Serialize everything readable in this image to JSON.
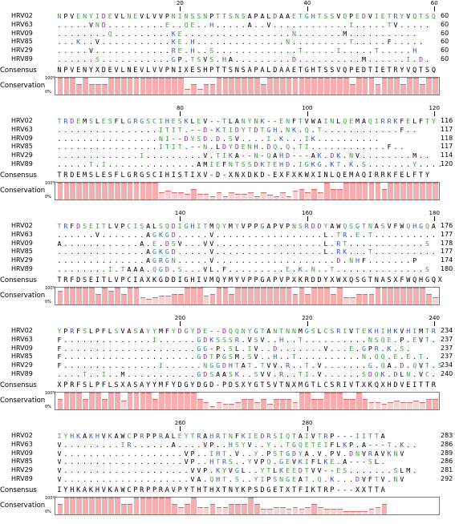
{
  "labels": {
    "consensus": "Consensus",
    "conservation": "Conservation",
    "pct_high": "100%",
    "pct_low": "0%"
  },
  "blocks": [
    {
      "ruler": [
        {
          "label": "20",
          "col": 20
        },
        {
          "label": "40",
          "col": 40
        },
        {
          "label": "60",
          "col": 60
        }
      ],
      "rows": [
        {
          "name": "HRV02",
          "seq": "NPVENYIDEVLNEVLVVPNINSSNPTTSNSAPALDAAETGHTSSVQPEDVIETRYVQTSQ",
          "count": "60"
        },
        {
          "name": "HRV63",
          "seq": ".....VND.........E..QE..H.....A..V............I.....TV.....",
          "count": "60"
        },
        {
          "name": "HRV09",
          "seq": "........Q.........KE.................N.......M...........",
          "count": "60"
        },
        {
          "name": "HRV85",
          "seq": "...K..V...........KE.H..............N.........T.....F.....",
          "count": "60"
        },
        {
          "name": "HRV29",
          "seq": ".....V............RE.H..S.............T.....I.....T.....H",
          "count": "60"
        },
        {
          "name": "HRV89",
          "seq": "......S...........GP.TSVS.HA.........D..........M......I.D.",
          "count": "60"
        }
      ],
      "consensus": "NPVENYXDEVLNEVLVVPNIXESHPTTSNSAPALDAAETGHTSSVQPEDTIETRYVQTSQ",
      "conservation": [
        100,
        100,
        100,
        62,
        100,
        62,
        62,
        62,
        100,
        100,
        100,
        100,
        100,
        100,
        100,
        100,
        100,
        100,
        100,
        100,
        33,
        62,
        33,
        62,
        62,
        100,
        100,
        100,
        100,
        100,
        100,
        100,
        62,
        100,
        100,
        100,
        100,
        100,
        100,
        100,
        100,
        100,
        100,
        100,
        100,
        100,
        62,
        100,
        100,
        100,
        62,
        100,
        100,
        100,
        62,
        100,
        100,
        62,
        100,
        100
      ]
    },
    {
      "ruler": [
        {
          "label": "80",
          "col": 20
        },
        {
          "label": "100",
          "col": 40
        },
        {
          "label": "120",
          "col": 60
        }
      ],
      "rows": [
        {
          "name": "HRV02",
          "seq": "TRDEMSLESFLGRGSCIHESKLEV--TLANYNK--ENFTVWAINLQEMAQIRRKFELFTY",
          "count": "116"
        },
        {
          "name": "HRV63",
          "seq": "................ITIT.--D-KTIDYTDTGH.NK.Q.T............F..",
          "count": "117"
        },
        {
          "name": "HRV09",
          "seq": "................NI--DYSD.D.SV....I.K...IK..........",
          "count": "118"
        },
        {
          "name": "HRV85",
          "seq": "................ITIT.--N.LDYDENH.DQ.Q.TI............F..",
          "count": "117"
        },
        {
          "name": "HRV29",
          "seq": ".............I.........V.TIKA--N-QAHD---AK.DK.NV........M..",
          "count": "114"
        },
        {
          "name": "HRV89",
          "seq": ".....T.I..............AMIEFNTSSDKTEHD.IGKG.KT.K.S.......Y....",
          "count": "120"
        }
      ],
      "consensus": "TRDEMSLESFLGRGSCIHISTIXV-D-XNXDKD-EXFXKWXINLQEMAQIRRKFELFTY",
      "conservation": [
        100,
        100,
        100,
        100,
        100,
        100,
        100,
        100,
        100,
        100,
        100,
        100,
        100,
        100,
        100,
        100,
        40,
        50,
        40,
        40,
        33,
        62,
        33,
        33,
        20,
        40,
        20,
        40,
        33,
        33,
        40,
        20,
        40,
        30,
        20,
        40,
        20,
        50,
        62,
        40,
        62,
        40,
        100,
        62,
        62,
        100,
        100,
        100,
        100,
        100,
        100,
        62,
        100,
        100,
        100,
        100,
        100,
        100,
        100,
        100
      ]
    },
    {
      "ruler": [
        {
          "label": "140",
          "col": 20
        },
        {
          "label": "160",
          "col": 40
        },
        {
          "label": "180",
          "col": 60
        }
      ],
      "rows": [
        {
          "name": "HRV02",
          "seq": "TRFDSEITLVPCISALSQDIGHITMQYMYVPPGAPVPNSRDDYAWQSGTNASVFWQHGQA",
          "count": "176"
        },
        {
          "name": "HRV63",
          "seq": "......V.......AGKGD.....V.................L.TR.E.T..........",
          "count": "177"
        },
        {
          "name": "HRV09",
          "seq": "A............A.E.DSV...VV.................L.RT............S",
          "count": "178"
        },
        {
          "name": "HRV85",
          "seq": "..............AGKGD.....V.................L.RK...T..........",
          "count": "177"
        },
        {
          "name": "HRV29",
          "seq": "..............AGRGN.....V...................D.NHF.......P",
          "count": "174"
        },
        {
          "name": "HRV89",
          "seq": "........I.TAAA.QGD.S...VL.F.........E.K.N..T..............S",
          "count": "180"
        }
      ],
      "consensus": "TRFDSEITLVPCIAXKGDDIGHIVMQYMYVPPGAPVPXKRDDYXWXQSGTNASXFWQHGQX",
      "conservation": [
        80,
        100,
        100,
        100,
        100,
        100,
        62,
        100,
        80,
        100,
        62,
        100,
        100,
        40,
        33,
        40,
        50,
        50,
        62,
        62,
        100,
        100,
        100,
        50,
        62,
        100,
        100,
        62,
        100,
        100,
        100,
        100,
        100,
        100,
        100,
        100,
        100,
        62,
        100,
        62,
        100,
        100,
        100,
        62,
        100,
        40,
        40,
        62,
        62,
        62,
        100,
        100,
        100,
        100,
        100,
        100,
        100,
        100,
        62,
        40
      ]
    },
    {
      "ruler": [
        {
          "label": "200",
          "col": 20
        },
        {
          "label": "220",
          "col": 40
        },
        {
          "label": "240",
          "col": 60
        }
      ],
      "rows": [
        {
          "name": "HRV02",
          "seq": "YPRFSLPFLSVASAYYMFYDGYDE--DQQNYGTANTNNMGSLCSRIVTEKHIHKVHIMTR",
          "count": "234"
        },
        {
          "name": "HRV63",
          "seq": "F..............I......GDKSSSR.VSV..H..T..........NSQE.P.EVT.",
          "count": "237"
        },
        {
          "name": "HRV09",
          "seq": "F.....................GG-P.SL.IV..D.......V...E.GPR.K.S.",
          "count": "237"
        },
        {
          "name": "HRV85",
          "seq": "F.....................GDTPGSM.SV..H..T..........N.QQ.E.E.T.",
          "count": "237"
        },
        {
          "name": "HRV29",
          "seq": "F...............I......NGGDHTAT.TVV.R..T.V.......G.QA.D.QVT.S",
          "count": "234"
        },
        {
          "name": "HRV89",
          "seq": "....T..I..M...........GDSAASK..SVV.R..TI.V......SDQK.DLN.VC.",
          "count": "240"
        }
      ],
      "consensus": "XPRFSLPFLSXASAYYMFYDGYDGD-PDSXYGTSVTNXMGTLCSRIVTXKQXHDVEITTR",
      "conservation": [
        62,
        100,
        100,
        100,
        62,
        100,
        100,
        62,
        100,
        100,
        50,
        100,
        100,
        100,
        100,
        62,
        100,
        100,
        100,
        100,
        100,
        100,
        62,
        40,
        20,
        40,
        33,
        33,
        40,
        62,
        62,
        40,
        62,
        33,
        62,
        62,
        62,
        40,
        100,
        100,
        62,
        62,
        100,
        100,
        100,
        62,
        62,
        100,
        62,
        40,
        40,
        33,
        40,
        50,
        40,
        40,
        50,
        40,
        62,
        62
      ]
    },
    {
      "ruler": [
        {
          "label": "260",
          "col": 20
        },
        {
          "label": "280",
          "col": 40
        }
      ],
      "rows": [
        {
          "name": "HRV02",
          "seq": "IYHKAKHVKAWCPRPPRALEYTRAHRTNFKIEDRSIQTAIVTRP---IITTA",
          "count": "283"
        },
        {
          "name": "HRV63",
          "seq": "V.........IR......A....VP..HSYV..Y..TGQETEIFLKP.A---T.K..",
          "count": "286"
        },
        {
          "name": "HRV09",
          "seq": "V...................VP..IHT.V..Y.PSTGDYA.V.PV.DNVRAVKNV",
          "count": "289"
        },
        {
          "name": "HRV85",
          "seq": "V...................VP..HTRS..YVPQ.GEVKIFLKE.A---SL.",
          "count": "286"
        },
        {
          "name": "HRV29",
          "seq": "V....................VVP.KYVGL..YTLKEEDTVV--ES.......SLM.",
          "count": "281"
        },
        {
          "name": "HRV89",
          "seq": "V....................VA.QHT.S..YIPSNGEAT.Q.K...DVFTV.NV",
          "count": "292"
        }
      ],
      "consensus": "IYHKAKHVKAWCPRPPRAVPYTHTHXTNYKPSDGETXTFIKTRP---XXTTA",
      "conservation": [
        62,
        100,
        100,
        100,
        100,
        100,
        100,
        100,
        100,
        100,
        62,
        62,
        100,
        100,
        100,
        100,
        100,
        100,
        62,
        40,
        62,
        100,
        40,
        40,
        62,
        40,
        40,
        62,
        62,
        62,
        100,
        62,
        33,
        33,
        40,
        40,
        33,
        40,
        33,
        40,
        62,
        40,
        33,
        33,
        33,
        20,
        20,
        20,
        20,
        33,
        40,
        62
      ]
    }
  ]
}
